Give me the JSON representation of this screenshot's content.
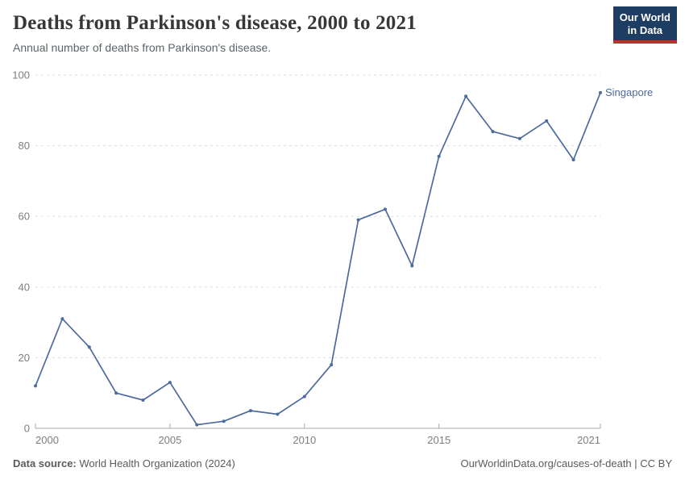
{
  "header": {
    "title": "Deaths from Parkinson's disease, 2000 to 2021",
    "subtitle": "Annual number of deaths from Parkinson's disease.",
    "logo": {
      "line1": "Our World",
      "line2": "in Data"
    }
  },
  "chart_data": {
    "type": "line",
    "title": "Deaths from Parkinson's disease, 2000 to 2021",
    "xlabel": "",
    "ylabel": "",
    "x": [
      2000,
      2001,
      2002,
      2003,
      2004,
      2005,
      2006,
      2007,
      2008,
      2009,
      2010,
      2011,
      2012,
      2013,
      2014,
      2015,
      2016,
      2017,
      2018,
      2019,
      2020,
      2021
    ],
    "series": [
      {
        "name": "Singapore",
        "color": "#4c6a9c",
        "values": [
          12,
          31,
          23,
          10,
          8,
          13,
          1,
          2,
          5,
          4,
          9,
          18,
          59,
          62,
          46,
          77,
          94,
          84,
          82,
          87,
          76,
          95
        ]
      }
    ],
    "xlim": [
      2000,
      2021
    ],
    "ylim": [
      0,
      100
    ],
    "xticks": [
      2000,
      2005,
      2010,
      2015,
      2021
    ],
    "yticks": [
      0,
      20,
      40,
      60,
      80,
      100
    ],
    "grid": "horizontal-dashed",
    "legend_position": "end-of-line"
  },
  "footer": {
    "source_label": "Data source:",
    "source_text": " World Health Organization (2024)",
    "credit": "OurWorldinData.org/causes-of-death | CC BY"
  },
  "colors": {
    "line": "#4c6a9c",
    "grid": "#dddddd",
    "axis": "#a8a8a8",
    "tick_label": "#7d7d7d",
    "title": "#383636",
    "subtitle": "#5d6468",
    "footer": "#5b5b5b",
    "logo_bg": "#1d3d63",
    "logo_stripe": "#b8352b"
  }
}
